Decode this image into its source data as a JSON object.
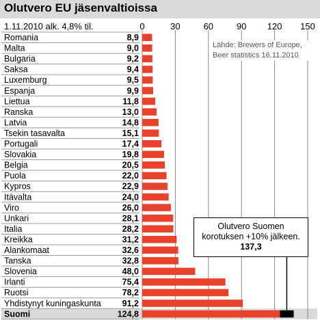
{
  "title": "Olutvero EU jäsenvaltioissa",
  "subtitle": "1.11.2010 alk. 4,8% til.",
  "source_lines": [
    "Lähde: Brewers of Europe,",
    "Beer statistics 16.11.2010"
  ],
  "callout": {
    "line1": "Olutvero Suomen",
    "line2": "korotuksen +10% jälkeen.",
    "value": "137,3"
  },
  "colors": {
    "bar": "#e8412c",
    "highlight_extra": "#000000",
    "title_band": "#d9d9d9",
    "grid": "#888888"
  },
  "chart_data": {
    "type": "bar",
    "orientation": "horizontal",
    "xlim": [
      0,
      150
    ],
    "ticks": [
      0,
      30,
      60,
      90,
      120,
      150
    ],
    "tick_labels": [
      "0",
      "30",
      "60",
      "90",
      "120",
      "150"
    ],
    "highlight": "Suomi",
    "highlight_after_increase": 137.3,
    "categories": [
      "Romania",
      "Malta",
      "Bulgaria",
      "Saksa",
      "Luxemburg",
      "Espanja",
      "Liettua",
      "Ranska",
      "Latvia",
      "Tsekin tasavalta",
      "Portugali",
      "Slovakia",
      "Belgia",
      "Puola",
      "Kypros",
      "Itävalta",
      "Viro",
      "Unkari",
      "Italia",
      "Kreikka",
      "Alankomaat",
      "Tanska",
      "Slovenia",
      "Irlanti",
      "Ruotsi",
      "Yhdistynyt kuningaskunta",
      "Suomi"
    ],
    "values": [
      8.9,
      9.0,
      9.2,
      9.4,
      9.5,
      9.9,
      11.8,
      13.0,
      14.8,
      15.1,
      17.4,
      19.8,
      20.5,
      22.0,
      22.9,
      24.0,
      26.0,
      28.1,
      28.2,
      31.2,
      32.6,
      32.8,
      48.0,
      75.4,
      78.2,
      91.2,
      124.8
    ],
    "value_labels": [
      "8,9",
      "9,0",
      "9,2",
      "9,4",
      "9,5",
      "9,9",
      "11,8",
      "13,0",
      "14,8",
      "15,1",
      "17,4",
      "19,8",
      "20,5",
      "22,0",
      "22,9",
      "24,0",
      "26,0",
      "28,1",
      "28,2",
      "31,2",
      "32,6",
      "32,8",
      "48,0",
      "75,4",
      "78,2",
      "91,2",
      "124,8"
    ]
  }
}
